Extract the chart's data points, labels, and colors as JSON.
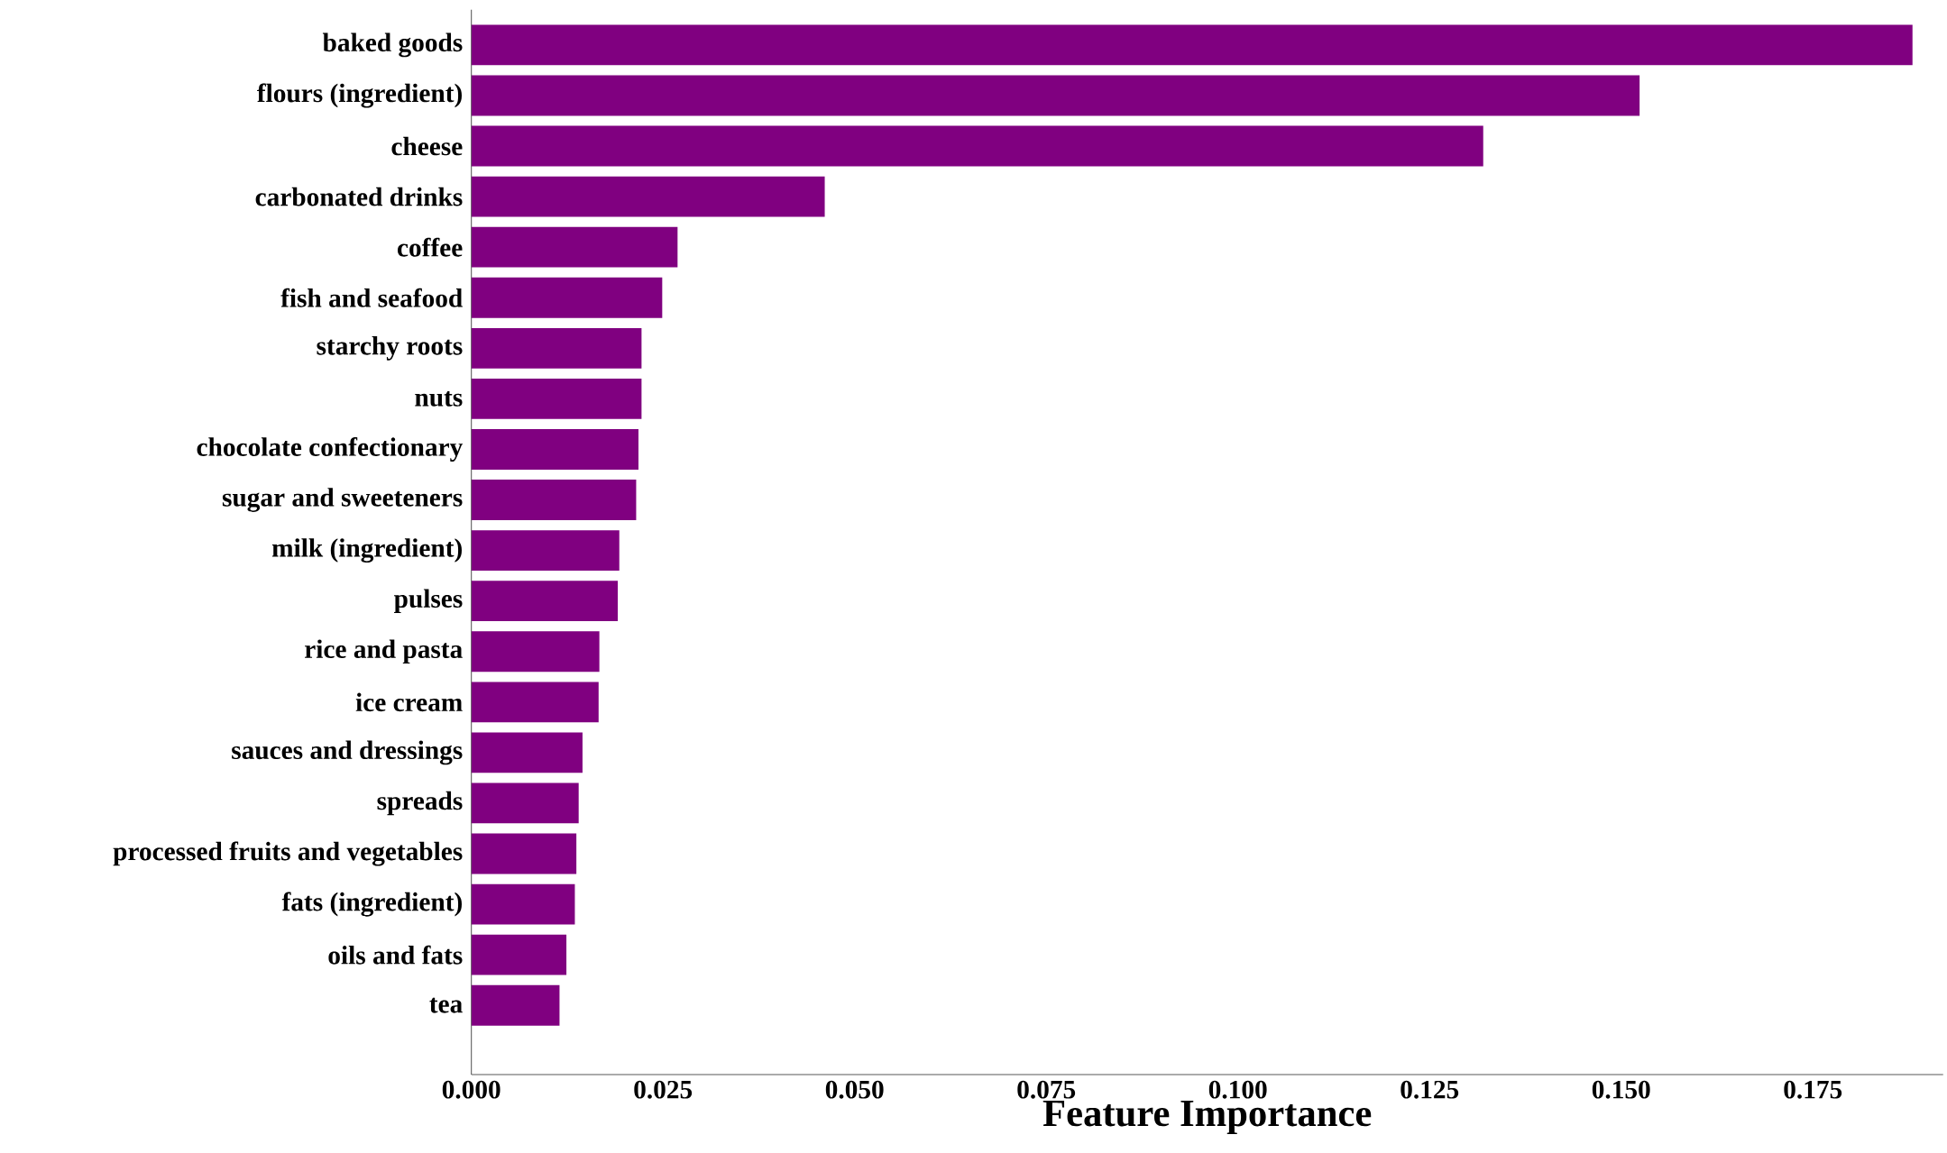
{
  "chart_data": {
    "type": "bar",
    "orientation": "horizontal",
    "xlabel": "Feature Importance",
    "categories": [
      "baked goods",
      "flours (ingredient)",
      "cheese",
      "carbonated drinks",
      "coffee",
      "fish and seafood",
      "starchy roots",
      "nuts",
      "chocolate confectionary",
      "sugar and sweeteners",
      "milk (ingredient)",
      "pulses",
      "rice and pasta",
      "ice cream",
      "sauces and dressings",
      "spreads",
      "processed fruits and vegetables",
      "fats (ingredient)",
      "oils and fats",
      "tea"
    ],
    "values": [
      0.188,
      0.1524,
      0.132,
      0.0461,
      0.0269,
      0.0249,
      0.0222,
      0.0222,
      0.0218,
      0.0215,
      0.0193,
      0.0191,
      0.0167,
      0.0166,
      0.0145,
      0.014,
      0.0137,
      0.0135,
      0.0124,
      0.0115
    ],
    "color": "#800080",
    "xlim": [
      0,
      0.192
    ],
    "xticks": [
      {
        "value": 0,
        "label": "0.000"
      },
      {
        "value": 0.025,
        "label": "0.025"
      },
      {
        "value": 0.05,
        "label": "0.050"
      },
      {
        "value": 0.075,
        "label": "0.075"
      },
      {
        "value": 0.1,
        "label": "0.100"
      },
      {
        "value": 0.125,
        "label": "0.125"
      },
      {
        "value": 0.15,
        "label": "0.150"
      },
      {
        "value": 0.175,
        "label": "0.175"
      }
    ]
  }
}
